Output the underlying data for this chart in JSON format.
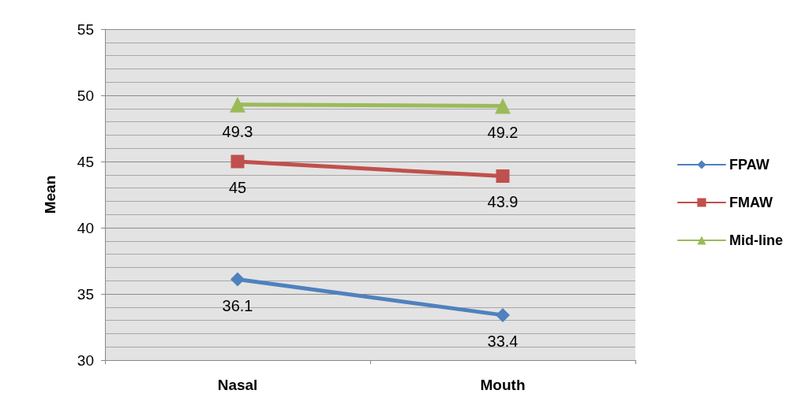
{
  "chart_data": {
    "type": "line",
    "ylabel": "Mean",
    "categories": [
      "Nasal",
      "Mouth"
    ],
    "series": [
      {
        "name": "FPAW",
        "color": "#4f81bd",
        "values": [
          36.1,
          33.4
        ],
        "marker": "diamond"
      },
      {
        "name": "FMAW",
        "color": "#c0504d",
        "values": [
          45,
          43.9
        ],
        "marker": "square"
      },
      {
        "name": "Mid-line",
        "color": "#9bbb59",
        "values": [
          49.3,
          49.2
        ],
        "marker": "triangle"
      }
    ],
    "ylim": [
      30,
      55
    ],
    "yticks": [
      30,
      35,
      40,
      45,
      50,
      55
    ],
    "grid": "y",
    "legend": "right",
    "data_labels": true
  }
}
